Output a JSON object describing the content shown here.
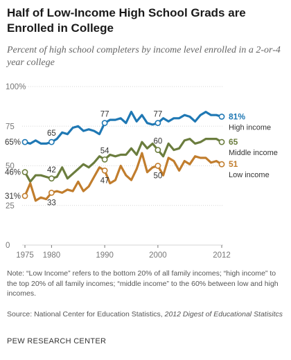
{
  "title": "Half of Low-Income High School Grads are Enrolled in College",
  "subtitle": "Percent of high school completers by income level enrolled in a 2-or-4 year college",
  "note": "Note: “Low Income” refers to the bottom 20% of all family incomes; “high income” to the top 20% of all family incomes; “middle income” to the 60% between low and high incomes.",
  "source_prefix": "Source: National Center for Education Statistics, ",
  "source_title": "2012 Digest of Educational Statisitcs",
  "organization": "PEW RESEARCH CENTER",
  "colors": {
    "high": "#1f78b4",
    "middle": "#6b7d3e",
    "low": "#c17d2d",
    "grid": "#d6d6d6",
    "axis": "#777777"
  },
  "chart_data": {
    "type": "line",
    "title": "Half of Low-Income High School Grads are Enrolled in College",
    "subtitle": "Percent of high school completers by income level enrolled in a 2-or-4 year college",
    "xlabel": "",
    "ylabel": "",
    "xlim": [
      1975,
      2012
    ],
    "ylim": [
      0,
      100
    ],
    "grid": true,
    "legend": "direct labels at line ends (right)",
    "y_ticks": [
      "0",
      "25",
      "50",
      "75",
      "100%"
    ],
    "x_ticks": [
      "1975",
      "1980",
      "1990",
      "2000",
      "2012"
    ],
    "x": [
      1975,
      1976,
      1977,
      1978,
      1979,
      1980,
      1981,
      1982,
      1983,
      1984,
      1985,
      1986,
      1987,
      1988,
      1989,
      1990,
      1991,
      1992,
      1993,
      1994,
      1995,
      1996,
      1997,
      1998,
      1999,
      2000,
      2001,
      2002,
      2003,
      2004,
      2005,
      2006,
      2007,
      2008,
      2009,
      2010,
      2011,
      2012
    ],
    "series": [
      {
        "key": "high",
        "end_value_label": "81%",
        "end_label": "High income",
        "values": [
          65,
          64,
          66,
          64,
          64,
          65,
          67,
          71,
          70,
          74,
          75,
          72,
          73,
          72,
          70,
          77,
          79,
          79,
          80,
          77,
          84,
          78,
          82,
          77,
          76,
          77,
          80,
          78,
          80,
          80,
          82,
          81,
          78,
          82,
          84,
          82,
          82,
          81
        ]
      },
      {
        "key": "middle",
        "end_value_label": "65",
        "end_label": "Middle income",
        "values": [
          46,
          40,
          44,
          44,
          43,
          42,
          43,
          49,
          42,
          45,
          48,
          51,
          49,
          52,
          56,
          54,
          57,
          56,
          57,
          57,
          61,
          57,
          65,
          61,
          64,
          60,
          56,
          64,
          60,
          61,
          66,
          67,
          64,
          65,
          67,
          67,
          67,
          65
        ]
      },
      {
        "key": "low",
        "end_value_label": "51",
        "end_label": "Low income",
        "values": [
          31,
          39,
          28,
          30,
          29,
          33,
          34,
          33,
          35,
          34,
          40,
          34,
          37,
          43,
          49,
          47,
          39,
          41,
          50,
          44,
          41,
          48,
          58,
          46,
          49,
          50,
          44,
          55,
          53,
          47,
          53,
          51,
          56,
          55,
          55,
          52,
          53,
          51
        ]
      }
    ],
    "annotations": [
      {
        "series": "high",
        "year": 1975,
        "label": "65%"
      },
      {
        "series": "high",
        "year": 1980,
        "label": "65"
      },
      {
        "series": "high",
        "year": 1990,
        "label": "77"
      },
      {
        "series": "high",
        "year": 2000,
        "label": "77"
      },
      {
        "series": "middle",
        "year": 1975,
        "label": "46%"
      },
      {
        "series": "middle",
        "year": 1980,
        "label": "42"
      },
      {
        "series": "middle",
        "year": 1990,
        "label": "54"
      },
      {
        "series": "middle",
        "year": 2000,
        "label": "60"
      },
      {
        "series": "low",
        "year": 1975,
        "label": "31%"
      },
      {
        "series": "low",
        "year": 1980,
        "label": "33"
      },
      {
        "series": "low",
        "year": 1990,
        "label": "47"
      },
      {
        "series": "low",
        "year": 2000,
        "label": "50"
      }
    ]
  }
}
